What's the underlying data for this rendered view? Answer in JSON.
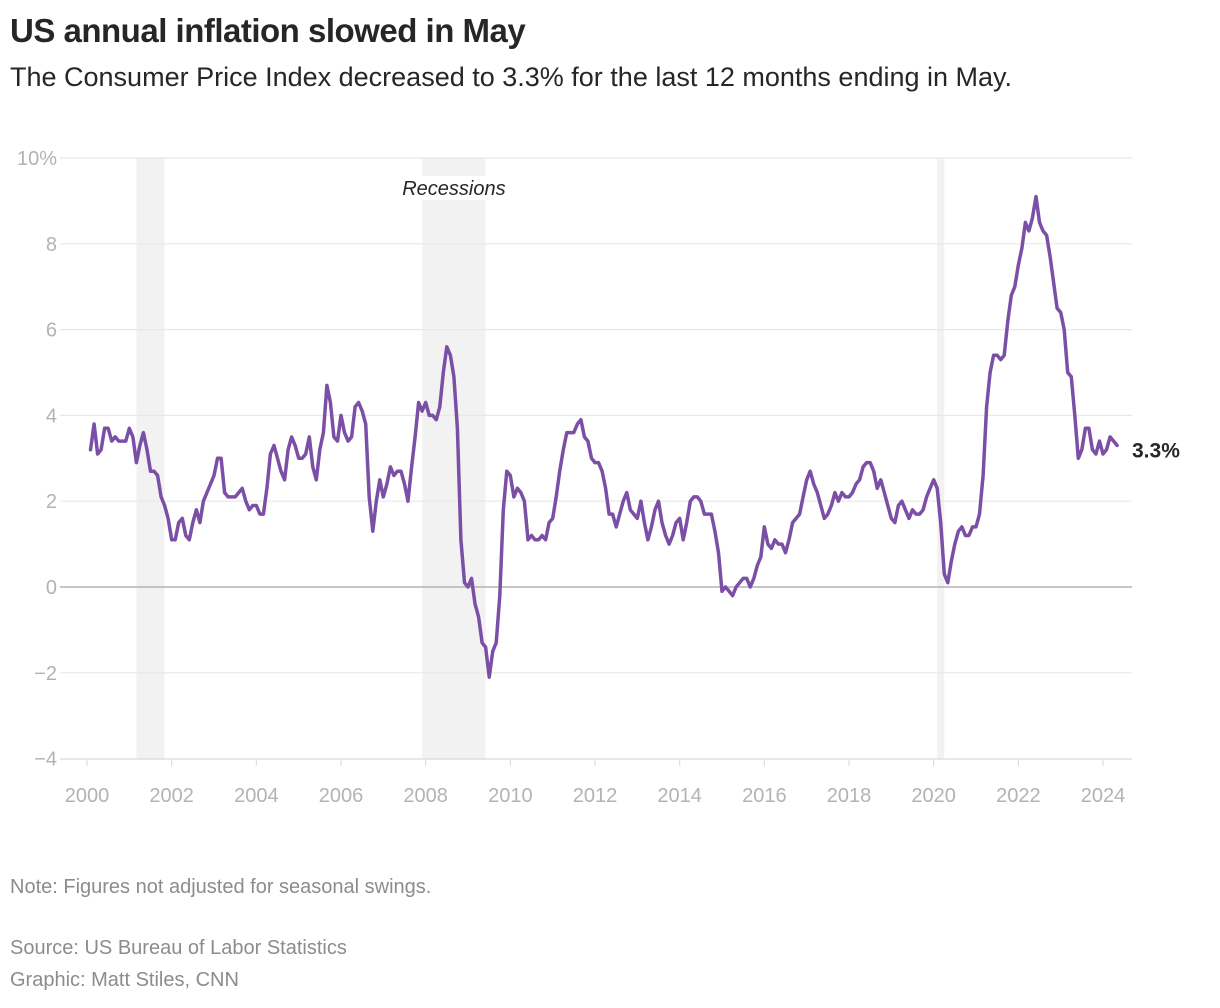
{
  "header": {
    "title": "US annual inflation slowed in May",
    "subtitle": "The Consumer Price Index decreased to 3.3% for the last 12 months ending in May."
  },
  "footer": {
    "note": "Note: Figures not adjusted for seasonal swings.",
    "source": "Source: US Bureau of Labor Statistics",
    "credit": "Graphic: Matt Stiles, CNN"
  },
  "chart_data": {
    "type": "line",
    "ylim": [
      -4,
      10
    ],
    "yticks": [
      {
        "value": 10,
        "label": "10%"
      },
      {
        "value": 8,
        "label": "8"
      },
      {
        "value": 6,
        "label": "6"
      },
      {
        "value": 4,
        "label": "4"
      },
      {
        "value": 2,
        "label": "2"
      },
      {
        "value": 0,
        "label": "0"
      },
      {
        "value": -2,
        "label": "−2"
      },
      {
        "value": -4,
        "label": "−4"
      }
    ],
    "xticks": [
      "2000",
      "2002",
      "2004",
      "2006",
      "2008",
      "2010",
      "2012",
      "2014",
      "2016",
      "2018",
      "2020",
      "2022",
      "2024"
    ],
    "grid": true,
    "line_color": "#7b4fa6",
    "recession_color": "#f2f2f2",
    "recession_label": "Recessions",
    "recessions": [
      [
        "2001-03",
        "2001-11"
      ],
      [
        "2007-12",
        "2009-06"
      ],
      [
        "2020-02",
        "2020-04"
      ]
    ],
    "end_label": "3.3%",
    "series": [
      {
        "start": "2000-02",
        "frequency": "monthly",
        "values": [
          3.2,
          3.8,
          3.1,
          3.2,
          3.7,
          3.7,
          3.4,
          3.5,
          3.4,
          3.4,
          3.4,
          3.7,
          3.5,
          2.9,
          3.3,
          3.6,
          3.2,
          2.7,
          2.7,
          2.6,
          2.1,
          1.9,
          1.6,
          1.1,
          1.1,
          1.5,
          1.6,
          1.2,
          1.1,
          1.5,
          1.8,
          1.5,
          2.0,
          2.2,
          2.4,
          2.6,
          3.0,
          3.0,
          2.2,
          2.1,
          2.1,
          2.1,
          2.2,
          2.3,
          2.0,
          1.8,
          1.9,
          1.9,
          1.7,
          1.7,
          2.3,
          3.1,
          3.3,
          3.0,
          2.7,
          2.5,
          3.2,
          3.5,
          3.3,
          3.0,
          3.0,
          3.1,
          3.5,
          2.8,
          2.5,
          3.2,
          3.6,
          4.7,
          4.3,
          3.5,
          3.4,
          4.0,
          3.6,
          3.4,
          3.5,
          4.2,
          4.3,
          4.1,
          3.8,
          2.1,
          1.3,
          2.0,
          2.5,
          2.1,
          2.4,
          2.8,
          2.6,
          2.7,
          2.7,
          2.4,
          2.0,
          2.8,
          3.5,
          4.3,
          4.1,
          4.3,
          4.0,
          4.0,
          3.9,
          4.2,
          5.0,
          5.6,
          5.4,
          4.9,
          3.7,
          1.1,
          0.1,
          0.0,
          0.2,
          -0.4,
          -0.7,
          -1.3,
          -1.4,
          -2.1,
          -1.5,
          -1.3,
          -0.2,
          1.8,
          2.7,
          2.6,
          2.1,
          2.3,
          2.2,
          2.0,
          1.1,
          1.2,
          1.1,
          1.1,
          1.2,
          1.1,
          1.5,
          1.6,
          2.1,
          2.7,
          3.2,
          3.6,
          3.6,
          3.6,
          3.8,
          3.9,
          3.5,
          3.4,
          3.0,
          2.9,
          2.9,
          2.7,
          2.3,
          1.7,
          1.7,
          1.4,
          1.7,
          2.0,
          2.2,
          1.8,
          1.7,
          1.6,
          2.0,
          1.5,
          1.1,
          1.4,
          1.8,
          2.0,
          1.5,
          1.2,
          1.0,
          1.2,
          1.5,
          1.6,
          1.1,
          1.5,
          2.0,
          2.1,
          2.1,
          2.0,
          1.7,
          1.7,
          1.7,
          1.3,
          0.8,
          -0.1,
          0.0,
          -0.1,
          -0.2,
          0.0,
          0.1,
          0.2,
          0.2,
          0.0,
          0.2,
          0.5,
          0.7,
          1.4,
          1.0,
          0.9,
          1.1,
          1.0,
          1.0,
          0.8,
          1.1,
          1.5,
          1.6,
          1.7,
          2.1,
          2.5,
          2.7,
          2.4,
          2.2,
          1.9,
          1.6,
          1.7,
          1.9,
          2.2,
          2.0,
          2.2,
          2.1,
          2.1,
          2.2,
          2.4,
          2.5,
          2.8,
          2.9,
          2.9,
          2.7,
          2.3,
          2.5,
          2.2,
          1.9,
          1.6,
          1.5,
          1.9,
          2.0,
          1.8,
          1.6,
          1.8,
          1.7,
          1.7,
          1.8,
          2.1,
          2.3,
          2.5,
          2.3,
          1.5,
          0.3,
          0.1,
          0.6,
          1.0,
          1.3,
          1.4,
          1.2,
          1.2,
          1.4,
          1.4,
          1.7,
          2.6,
          4.2,
          5.0,
          5.4,
          5.4,
          5.3,
          5.4,
          6.2,
          6.8,
          7.0,
          7.5,
          7.9,
          8.5,
          8.3,
          8.6,
          9.1,
          8.5,
          8.3,
          8.2,
          7.7,
          7.1,
          6.5,
          6.4,
          6.0,
          5.0,
          4.9,
          4.0,
          3.0,
          3.2,
          3.7,
          3.7,
          3.2,
          3.1,
          3.4,
          3.1,
          3.2,
          3.5,
          3.4,
          3.3
        ]
      }
    ]
  }
}
